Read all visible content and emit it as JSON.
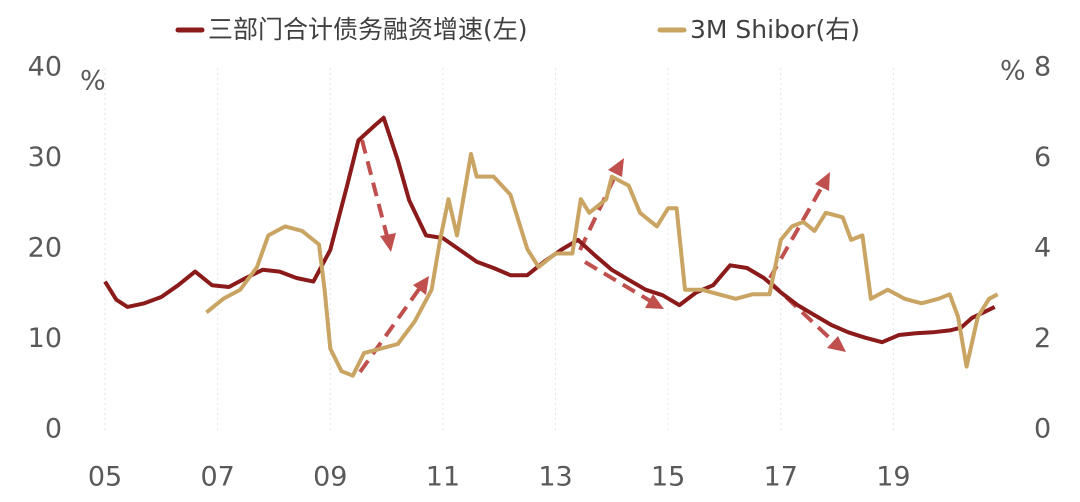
{
  "chart_data": {
    "type": "line",
    "y_label": "%",
    "y2_label": "%",
    "xlim": [
      5,
      21
    ],
    "xticks": [
      {
        "value": 5,
        "label": "05"
      },
      {
        "value": 7,
        "label": "07"
      },
      {
        "value": 9,
        "label": "09"
      },
      11,
      13,
      15,
      17,
      19
    ],
    "ylim": [
      0,
      40
    ],
    "yticks": [
      0,
      10,
      20,
      30,
      40
    ],
    "y2lim": [
      0,
      8
    ],
    "y2ticks": [
      0,
      2,
      4,
      6,
      8
    ],
    "grid": true,
    "series": [
      {
        "name": "三部门合计债务融资增速(左)",
        "color": "#8b1a1a",
        "x": [
          5.0,
          5.2,
          5.4,
          5.7,
          6.0,
          6.3,
          6.6,
          6.9,
          7.2,
          7.5,
          7.8,
          8.1,
          8.4,
          8.7,
          9.0,
          9.3,
          9.5,
          9.8,
          9.95,
          10.2,
          10.4,
          10.7,
          11.0,
          11.3,
          11.6,
          11.9,
          12.2,
          12.5,
          12.8,
          13.1,
          13.4,
          13.7,
          14.0,
          14.3,
          14.6,
          14.9,
          15.2,
          15.5,
          15.8,
          16.1,
          16.4,
          16.7,
          17.0,
          17.3,
          17.6,
          17.9,
          18.2,
          18.5,
          18.8,
          19.1,
          19.4,
          19.7,
          20.0,
          20.2,
          20.4,
          20.6,
          20.8
        ],
        "values": [
          16.4,
          14.4,
          13.6,
          14.0,
          14.7,
          16.0,
          17.5,
          16.0,
          15.8,
          16.8,
          17.7,
          17.5,
          16.8,
          16.4,
          19.9,
          27,
          32,
          33.7,
          34.5,
          29.8,
          25.4,
          21.5,
          21.2,
          19.9,
          18.6,
          17.9,
          17.1,
          17.1,
          18.6,
          19.9,
          21.0,
          19.3,
          17.7,
          16.6,
          15.5,
          14.9,
          13.8,
          15.2,
          16.0,
          18.2,
          17.9,
          16.8,
          15.2,
          13.8,
          12.7,
          11.6,
          10.8,
          10.2,
          9.7,
          10.5,
          10.7,
          10.8,
          11.0,
          11.3,
          12.4,
          13.0,
          13.6
        ]
      },
      {
        "name": "3M Shibor(右)",
        "color": "#c9a463",
        "axis": "y2",
        "x": [
          6.8,
          7.1,
          7.4,
          7.7,
          7.9,
          8.2,
          8.5,
          8.8,
          8.9,
          9.0,
          9.2,
          9.4,
          9.6,
          9.9,
          10.2,
          10.5,
          10.8,
          10.95,
          11.1,
          11.25,
          11.5,
          11.6,
          11.9,
          12.2,
          12.5,
          12.7,
          13.0,
          13.3,
          13.45,
          13.6,
          13.9,
          14.0,
          14.3,
          14.5,
          14.8,
          15.0,
          15.15,
          15.3,
          15.6,
          15.9,
          16.2,
          16.5,
          16.8,
          17.0,
          17.2,
          17.4,
          17.6,
          17.8,
          18.1,
          18.25,
          18.45,
          18.6,
          18.9,
          19.2,
          19.5,
          19.8,
          20.0,
          20.15,
          20.3,
          20.5,
          20.7,
          20.85
        ],
        "values": [
          2.6,
          2.9,
          3.1,
          3.6,
          4.3,
          4.5,
          4.4,
          4.1,
          3.1,
          1.8,
          1.3,
          1.2,
          1.7,
          1.8,
          1.9,
          2.4,
          3.1,
          4.2,
          5.1,
          4.3,
          6.1,
          5.6,
          5.6,
          5.2,
          4.0,
          3.6,
          3.9,
          3.9,
          5.1,
          4.8,
          5.1,
          5.6,
          5.4,
          4.8,
          4.5,
          4.9,
          4.9,
          3.1,
          3.1,
          3.0,
          2.9,
          3.0,
          3.0,
          4.2,
          4.5,
          4.6,
          4.4,
          4.8,
          4.7,
          4.2,
          4.3,
          2.9,
          3.1,
          2.9,
          2.8,
          2.9,
          3.0,
          2.5,
          1.4,
          2.5,
          2.9,
          3.0
        ]
      }
    ]
  }
}
